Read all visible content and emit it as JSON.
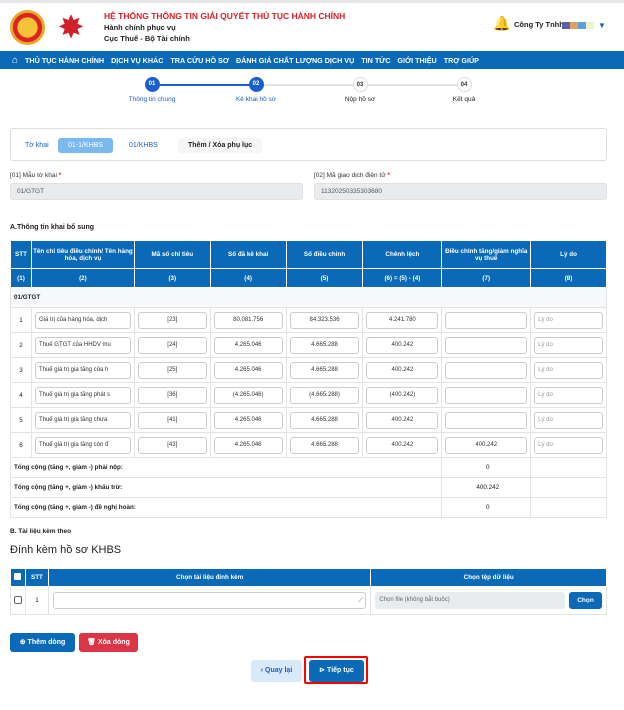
{
  "header": {
    "system_title": "HỆ THỐNG THÔNG TIN GIẢI QUYẾT THỦ TỤC HÀNH CHÍNH",
    "subtitle1": "Hành chính phục vụ",
    "subtitle2": "Cục Thuế - Bộ Tài chính",
    "user_name": "Công Ty Tnhh"
  },
  "nav": [
    "THỦ TỤC HÀNH CHÍNH",
    "DỊCH VỤ KHÁC",
    "TRA CỨU HỒ SƠ",
    "ĐÁNH GIÁ CHẤT LƯỢNG DỊCH VỤ",
    "TIN TỨC",
    "GIỚI THIỆU",
    "TRỢ GIÚP"
  ],
  "steps": [
    {
      "num": "01",
      "label": "Thông tin chung",
      "done": true
    },
    {
      "num": "02",
      "label": "Kê khai hồ sơ",
      "done": true
    },
    {
      "num": "03",
      "label": "Nộp hồ sơ",
      "done": false
    },
    {
      "num": "04",
      "label": "Kết quả",
      "done": false
    }
  ],
  "tabs": [
    "Tờ khai",
    "01-1/KHBS",
    "01/KHBS",
    "Thêm / Xóa phụ lục"
  ],
  "fields": {
    "form_label": "[01] Mẫu tờ khai",
    "form_value": "01/GTGT",
    "txn_label": "[02] Mã giao dịch điện tử",
    "txn_value": "11320250335303680"
  },
  "sectionA": "A.Thông tin khai bổ sung",
  "table": {
    "headers": [
      "STT",
      "Tên chỉ tiêu điều chỉnh/ Tên hàng hóa, dịch vụ",
      "Mã số chỉ tiêu",
      "Số đã kê khai",
      "Số điều chỉnh",
      "Chênh lệch",
      "Điều chỉnh tăng/giảm nghĩa vụ thuế",
      "Lý do"
    ],
    "subheaders": [
      "(1)",
      "(2)",
      "(3)",
      "(4)",
      "(5)",
      "(6) = (5) - (4)",
      "(7)",
      "(8)"
    ],
    "group": "01/GTGT",
    "reason_placeholder": "Lý do",
    "rows": [
      {
        "stt": "1",
        "name": "Giá trị của hàng hóa, dịch",
        "code": "[23]",
        "declared": "80.081.756",
        "adjusted": "84.323.536",
        "diff": "4.241.780",
        "change": ""
      },
      {
        "stt": "2",
        "name": "Thuế GTGT của HHDV mu",
        "code": "[24]",
        "declared": "4.265.046",
        "adjusted": "4.665.288",
        "diff": "400.242",
        "change": ""
      },
      {
        "stt": "3",
        "name": "Thuế giá trị gia tăng của h",
        "code": "[25]",
        "declared": "4.265.046",
        "adjusted": "4.665.288",
        "diff": "400.242",
        "change": ""
      },
      {
        "stt": "4",
        "name": "Thuế giá trị gia tăng phát s",
        "code": "[36]",
        "declared": "(4.265.046)",
        "adjusted": "(4.665.288)",
        "diff": "(400.242)",
        "change": ""
      },
      {
        "stt": "5",
        "name": "Thuế giá trị gia tăng chưa",
        "code": "[41]",
        "declared": "4.265.046",
        "adjusted": "4.665.288",
        "diff": "400.242",
        "change": ""
      },
      {
        "stt": "6",
        "name": "Thuế giá trị gia tăng còn đ",
        "code": "[43]",
        "declared": "4.265.046",
        "adjusted": "4.665.288",
        "diff": "400.242",
        "change": "400.242"
      }
    ],
    "totals": [
      {
        "label": "Tổng cộng (tăng +, giảm -) phải nộp:",
        "value": "0"
      },
      {
        "label": "Tổng cộng (tăng +, giảm -) khấu trừ:",
        "value": "400.242"
      },
      {
        "label": "Tổng cộng (tăng +, giảm -) đề nghị hoàn:",
        "value": "0"
      }
    ]
  },
  "sectionB": "B. Tài liệu kèm theo",
  "attach": {
    "title": "Đính kèm hồ sơ KHBS",
    "headers": [
      "STT",
      "Chọn tài liệu đính kèm",
      "Chọn tệp dữ liệu"
    ],
    "row_stt": "1",
    "file_placeholder": "Chọn file (không bắt buộc)",
    "choose": "Chọn"
  },
  "buttons": {
    "add_row": "Thêm dòng",
    "delete_row": "Xóa dòng",
    "back": "Quay lại",
    "next": "Tiếp tục"
  },
  "colors": {
    "primary": "#0a6ab8",
    "danger": "#dc3545",
    "brand_red": "#d4202a"
  }
}
